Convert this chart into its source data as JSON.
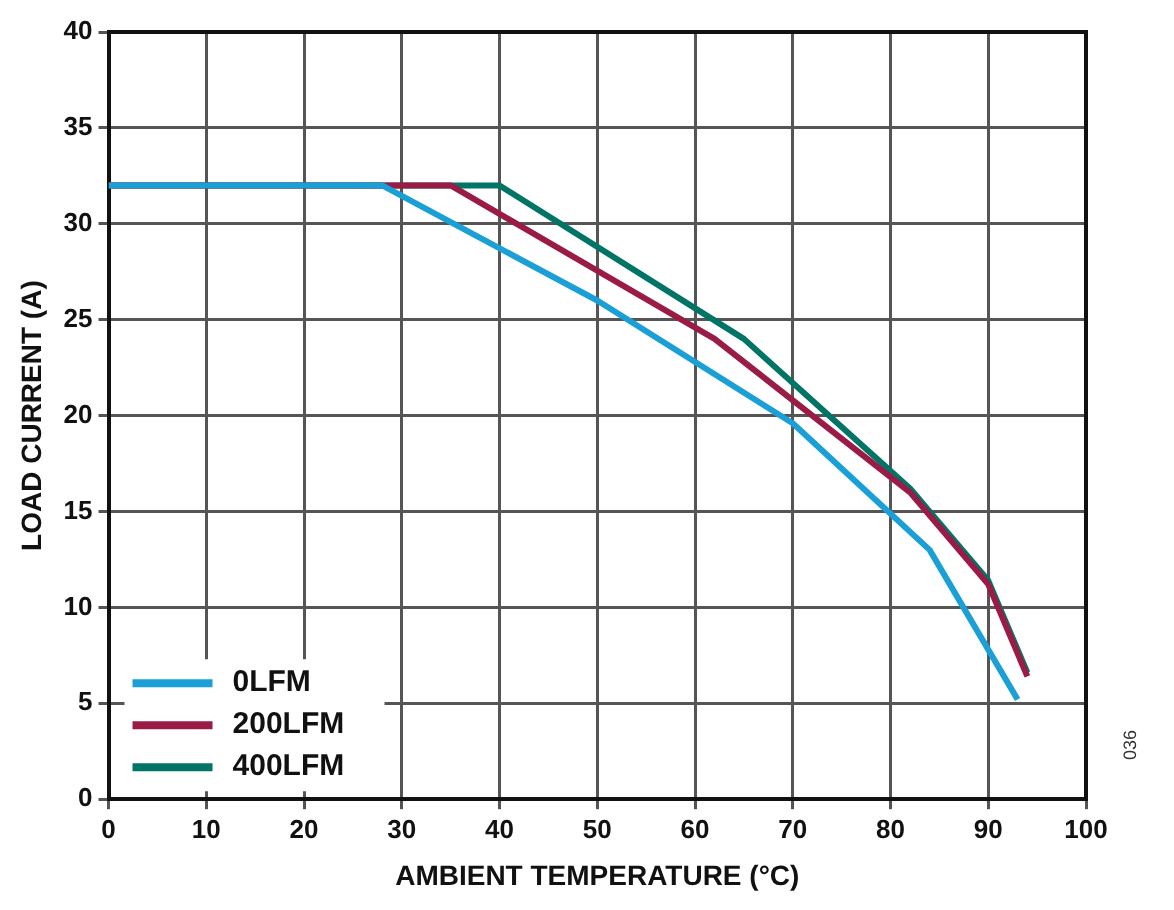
{
  "chart_data": {
    "type": "line",
    "xlabel": "AMBIENT TEMPERATURE (°C)",
    "ylabel": "LOAD CURRENT (A)",
    "xlim": [
      0,
      100
    ],
    "xticks": [
      0,
      10,
      20,
      30,
      40,
      50,
      60,
      70,
      80,
      90,
      100
    ],
    "ylim": [
      0,
      40
    ],
    "yticks": [
      0,
      5,
      10,
      15,
      20,
      25,
      30,
      35,
      40
    ],
    "grid": true,
    "legend": "bottom left",
    "marker": "none",
    "line_style": "solid",
    "annotations": [
      "036"
    ],
    "series": [
      {
        "name": "0LFM",
        "color": "#1a9fd6",
        "x": [
          0,
          28,
          50,
          70,
          84,
          93
        ],
        "values": [
          32,
          32,
          26,
          19.6,
          13,
          5.2
        ]
      },
      {
        "name": "200LFM",
        "color": "#9b1b47",
        "x": [
          0,
          35,
          62,
          82,
          90,
          94
        ],
        "values": [
          32,
          32,
          24,
          16,
          11.2,
          6.4
        ]
      },
      {
        "name": "400LFM",
        "color": "#007566",
        "x": [
          0,
          40,
          65,
          82,
          90,
          94
        ],
        "values": [
          32,
          32,
          24,
          16.2,
          11.4,
          6.6
        ]
      }
    ]
  }
}
